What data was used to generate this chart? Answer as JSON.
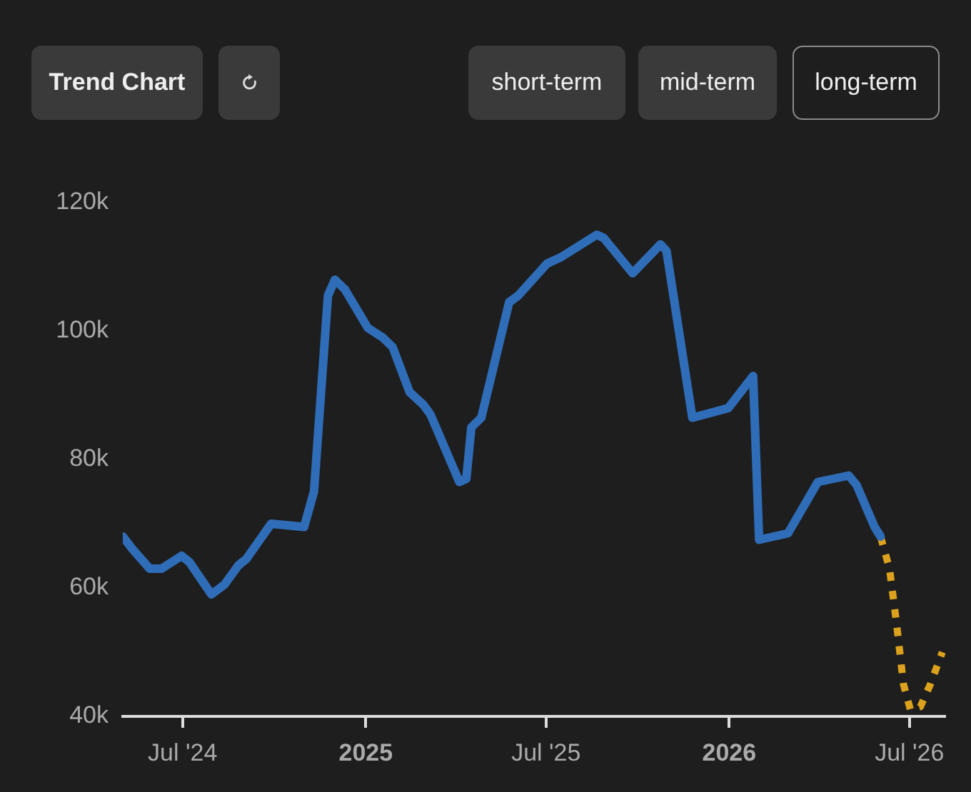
{
  "chart_data": {
    "type": "line",
    "annotations": [
      "Trend Chart",
      "short-term",
      "mid-term",
      "long-term"
    ],
    "xlim": [
      "2024-05-02",
      "2026-08-06"
    ],
    "xticks": [
      {
        "value": "2024-07-01",
        "label": "Jul '24"
      },
      {
        "value": "2025-01-01",
        "label": "2025"
      },
      {
        "value": "2025-07-01",
        "label": "Jul '25"
      },
      {
        "value": "2026-01-01",
        "label": "2026"
      },
      {
        "value": "2026-07-01",
        "label": "Jul '26"
      }
    ],
    "ylim": [
      40000,
      120000
    ],
    "yticks": [
      {
        "value": 40000,
        "label": "40k"
      },
      {
        "value": 60000,
        "label": "60k"
      },
      {
        "value": 80000,
        "label": "80k"
      },
      {
        "value": 100000,
        "label": "100k"
      },
      {
        "value": 120000,
        "label": "120k"
      }
    ],
    "grid": false,
    "legend": false,
    "marker": "none",
    "series": [
      {
        "color": "#2f6db8",
        "line_style": "solid",
        "x": [
          "2024-05-02",
          "2024-05-12",
          "2024-05-29",
          "2024-06-10",
          "2024-06-30",
          "2024-07-08",
          "2024-07-30",
          "2024-08-12",
          "2024-08-26",
          "2024-09-03",
          "2024-09-28",
          "2024-10-31",
          "2024-11-10",
          "2024-11-24",
          "2024-12-01",
          "2024-12-11",
          "2025-01-03",
          "2025-01-18",
          "2025-01-28",
          "2025-02-14",
          "2025-02-28",
          "2025-03-07",
          "2025-04-05",
          "2025-04-12",
          "2025-04-17",
          "2025-04-27",
          "2025-05-25",
          "2025-06-03",
          "2025-07-02",
          "2025-07-16",
          "2025-08-21",
          "2025-08-28",
          "2025-09-26",
          "2025-10-24",
          "2025-10-30",
          "2025-11-25",
          "2025-12-31",
          "2026-01-25",
          "2026-01-31",
          "2026-03-01",
          "2026-03-31",
          "2026-05-01",
          "2026-05-09",
          "2026-05-27",
          "2026-06-02"
        ],
        "values": [
          68000,
          66000,
          63000,
          63000,
          65000,
          64000,
          59000,
          60500,
          63500,
          64500,
          70000,
          69500,
          75000,
          105500,
          108000,
          106500,
          100500,
          99000,
          97500,
          90500,
          88500,
          87000,
          76500,
          77000,
          85000,
          86500,
          104500,
          105500,
          110500,
          111500,
          115000,
          114500,
          109000,
          113500,
          112500,
          86500,
          88000,
          93000,
          67500,
          68500,
          76500,
          77500,
          76000,
          69500,
          68000
        ]
      },
      {
        "color": "#dca11d",
        "line_style": "dotted",
        "x": [
          "2026-06-02",
          "2026-06-11",
          "2026-06-18",
          "2026-06-25",
          "2026-07-02",
          "2026-07-12",
          "2026-07-22",
          "2026-08-03"
        ],
        "values": [
          68000,
          63000,
          54500,
          45000,
          41000,
          41500,
          45000,
          50000
        ]
      }
    ]
  }
}
